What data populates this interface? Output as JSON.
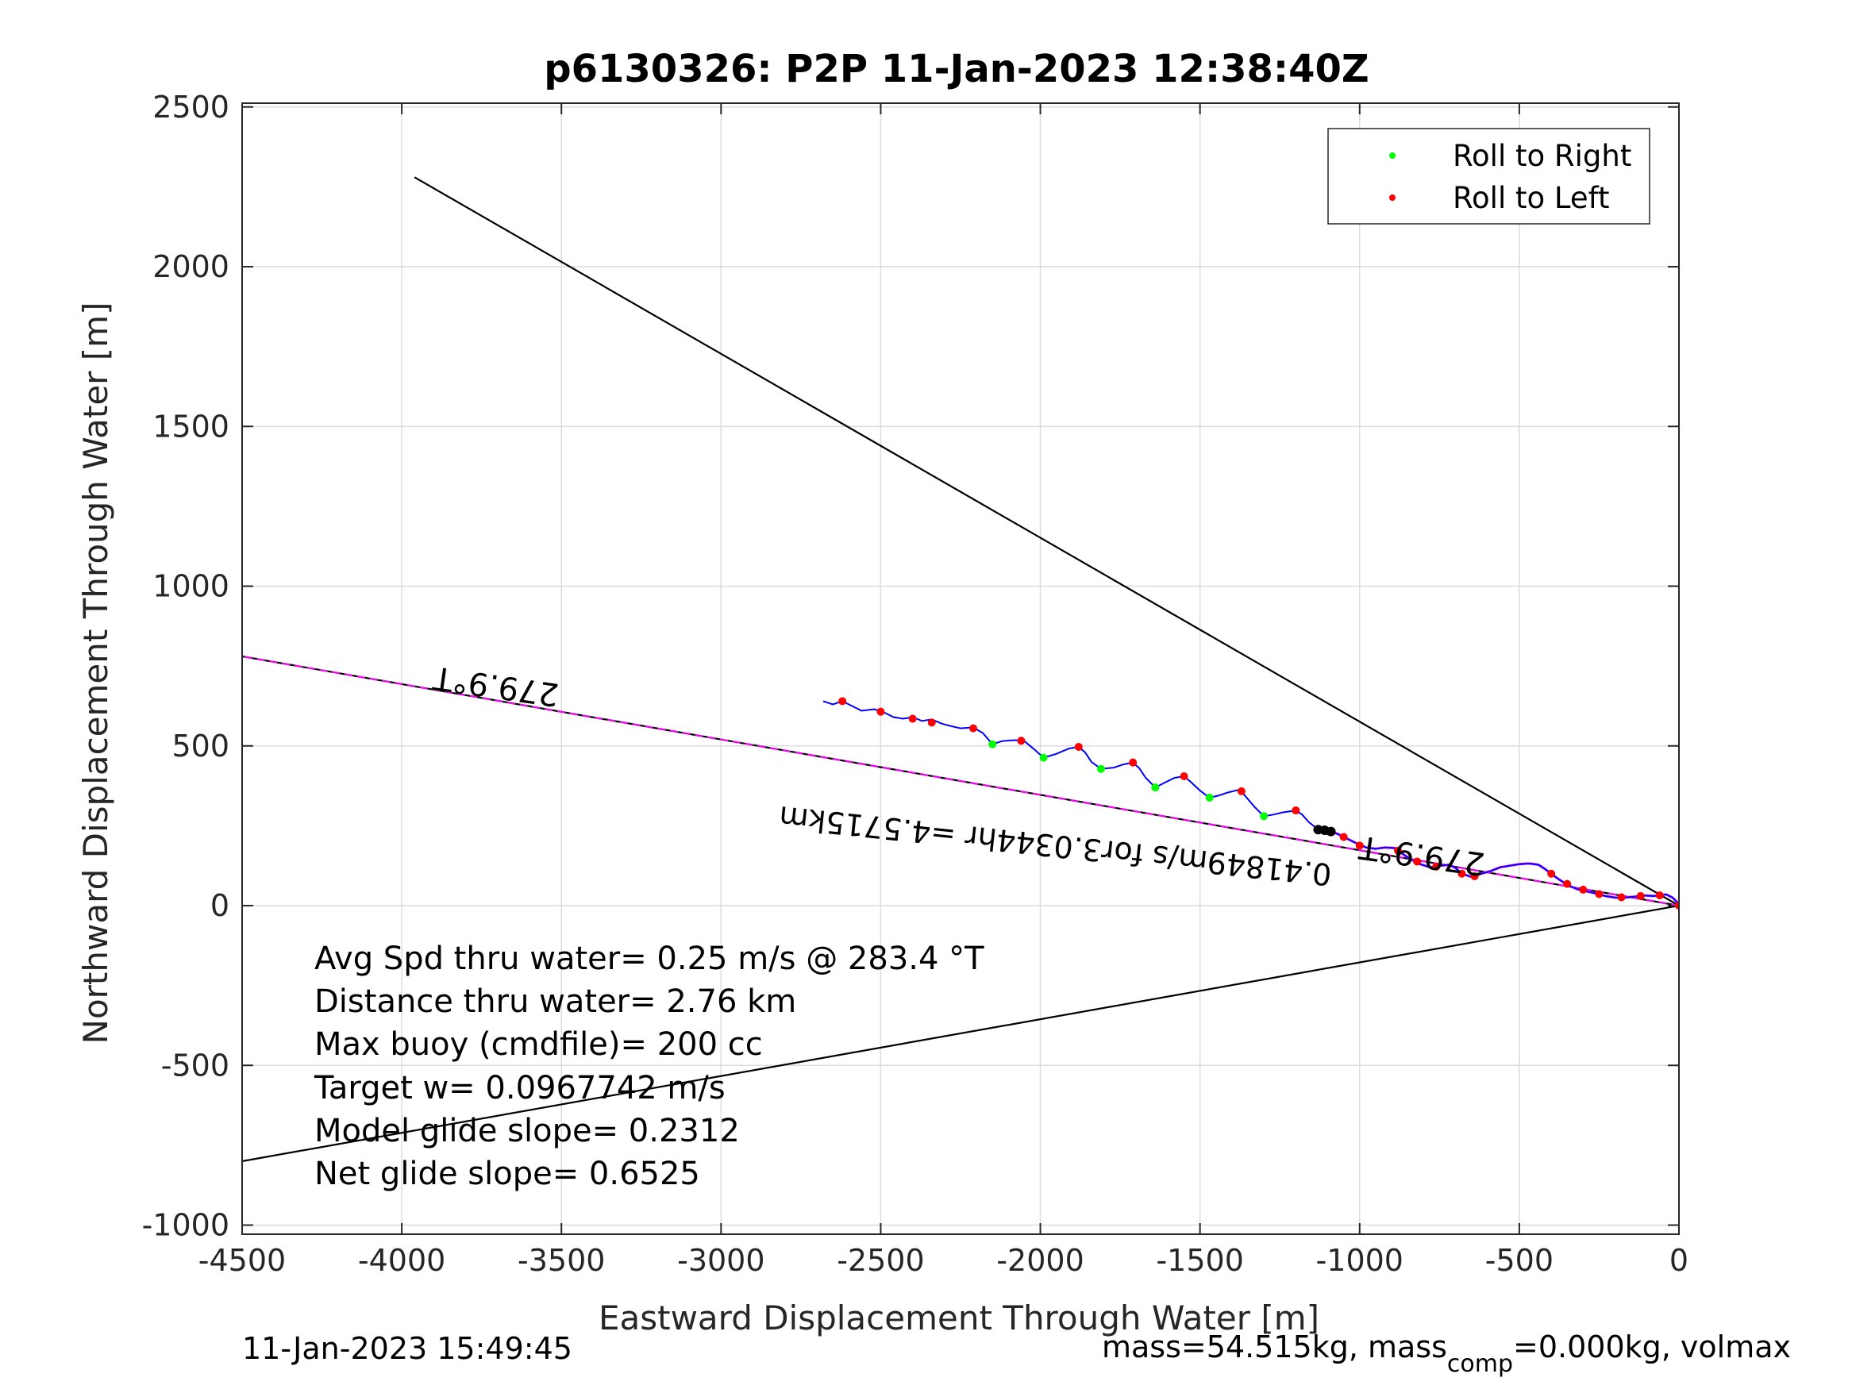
{
  "chart_data": {
    "type": "line",
    "title": "p6130326: P2P 11-Jan-2023 12:38:40Z",
    "xlabel": "Eastward Displacement Through Water [m]",
    "ylabel": "Northward Displacement Through Water [m]",
    "xlim": [
      -4500,
      0
    ],
    "ylim": [
      -1050,
      2520
    ],
    "x_ticks": [
      "-4500",
      "-4000",
      "-3500",
      "-3000",
      "-2500",
      "-2000",
      "-1500",
      "-1000",
      "-500",
      "0"
    ],
    "x_tick_values": [
      -4500,
      -4000,
      -3500,
      -3000,
      -2500,
      -2000,
      -1500,
      -1000,
      -500,
      0
    ],
    "y_ticks": [
      "-1000",
      "-500",
      "0",
      "500",
      "1000",
      "1500",
      "2000",
      "2500"
    ],
    "y_tick_values": [
      -1000,
      -500,
      0,
      500,
      1000,
      1500,
      2000,
      2500
    ],
    "grid": true,
    "legend": {
      "placement": "top-right",
      "entries": [
        {
          "label": "Roll to Right",
          "color": "#00ff00"
        },
        {
          "label": "Roll to Left",
          "color": "#ff0000"
        }
      ]
    },
    "reference_lines": [
      {
        "color": "#000000",
        "points": [
          [
            0,
            0
          ],
          [
            -3960,
            2280
          ]
        ]
      },
      {
        "color": "#000000",
        "points": [
          [
            0,
            0
          ],
          [
            -4500,
            -800
          ]
        ]
      },
      {
        "color": "#000000",
        "points": [
          [
            0,
            0
          ],
          [
            -4500,
            780
          ]
        ]
      },
      {
        "color": "#ff00ff",
        "points": [
          [
            0,
            0
          ],
          [
            -4500,
            780
          ]
        ]
      }
    ],
    "track": {
      "color": "#0000ff",
      "points": [
        [
          -2680,
          640
        ],
        [
          -2650,
          630
        ],
        [
          -2620,
          640
        ],
        [
          -2590,
          625
        ],
        [
          -2560,
          610
        ],
        [
          -2520,
          615
        ],
        [
          -2490,
          605
        ],
        [
          -2460,
          590
        ],
        [
          -2430,
          585
        ],
        [
          -2400,
          590
        ],
        [
          -2370,
          578
        ],
        [
          -2340,
          583
        ],
        [
          -2310,
          570
        ],
        [
          -2280,
          562
        ],
        [
          -2250,
          555
        ],
        [
          -2210,
          558
        ],
        [
          -2180,
          540
        ],
        [
          -2150,
          505
        ],
        [
          -2120,
          515
        ],
        [
          -2080,
          518
        ],
        [
          -2050,
          515
        ],
        [
          -2020,
          490
        ],
        [
          -1990,
          463
        ],
        [
          -1950,
          475
        ],
        [
          -1910,
          492
        ],
        [
          -1880,
          497
        ],
        [
          -1860,
          480
        ],
        [
          -1840,
          450
        ],
        [
          -1810,
          428
        ],
        [
          -1770,
          432
        ],
        [
          -1740,
          442
        ],
        [
          -1710,
          448
        ],
        [
          -1690,
          430
        ],
        [
          -1670,
          400
        ],
        [
          -1640,
          370
        ],
        [
          -1610,
          385
        ],
        [
          -1580,
          400
        ],
        [
          -1550,
          405
        ],
        [
          -1530,
          388
        ],
        [
          -1500,
          360
        ],
        [
          -1470,
          338
        ],
        [
          -1440,
          345
        ],
        [
          -1410,
          355
        ],
        [
          -1380,
          362
        ],
        [
          -1360,
          345
        ],
        [
          -1330,
          310
        ],
        [
          -1300,
          280
        ],
        [
          -1270,
          285
        ],
        [
          -1240,
          292
        ],
        [
          -1200,
          298
        ],
        [
          -1180,
          285
        ],
        [
          -1160,
          262
        ],
        [
          -1130,
          238
        ],
        [
          -1100,
          235
        ],
        [
          -1070,
          225
        ],
        [
          -1040,
          210
        ],
        [
          -1010,
          195
        ],
        [
          -980,
          182
        ],
        [
          -950,
          178
        ],
        [
          -920,
          182
        ],
        [
          -890,
          180
        ],
        [
          -870,
          165
        ],
        [
          -840,
          145
        ],
        [
          -810,
          130
        ],
        [
          -780,
          120
        ],
        [
          -750,
          125
        ],
        [
          -720,
          128
        ],
        [
          -700,
          118
        ],
        [
          -680,
          100
        ],
        [
          -650,
          90
        ],
        [
          -620,
          100
        ],
        [
          -590,
          108
        ],
        [
          -560,
          120
        ],
        [
          -530,
          125
        ],
        [
          -500,
          130
        ],
        [
          -470,
          132
        ],
        [
          -440,
          128
        ],
        [
          -420,
          115
        ],
        [
          -400,
          100
        ],
        [
          -380,
          85
        ],
        [
          -350,
          65
        ],
        [
          -320,
          52
        ],
        [
          -290,
          45
        ],
        [
          -260,
          38
        ],
        [
          -230,
          30
        ],
        [
          -200,
          25
        ],
        [
          -170,
          25
        ],
        [
          -140,
          28
        ],
        [
          -110,
          32
        ],
        [
          -80,
          30
        ],
        [
          -60,
          32
        ],
        [
          -40,
          35
        ],
        [
          -20,
          25
        ],
        [
          0,
          5
        ]
      ]
    },
    "roll_right_points": [
      [
        -2150,
        505
      ],
      [
        -1990,
        463
      ],
      [
        -1810,
        428
      ],
      [
        -1640,
        370
      ],
      [
        -1470,
        338
      ],
      [
        -1300,
        280
      ]
    ],
    "roll_left_points": [
      [
        -2620,
        640
      ],
      [
        -2500,
        607
      ],
      [
        -2400,
        585
      ],
      [
        -2340,
        573
      ],
      [
        -2210,
        555
      ],
      [
        -2060,
        516
      ],
      [
        -1880,
        497
      ],
      [
        -1710,
        448
      ],
      [
        -1550,
        405
      ],
      [
        -1370,
        358
      ],
      [
        -1200,
        298
      ],
      [
        -1100,
        233
      ],
      [
        -1050,
        215
      ],
      [
        -1000,
        188
      ],
      [
        -880,
        172
      ],
      [
        -820,
        138
      ],
      [
        -760,
        122
      ],
      [
        -680,
        100
      ],
      [
        -640,
        92
      ],
      [
        -400,
        100
      ],
      [
        -350,
        68
      ],
      [
        -300,
        50
      ],
      [
        -250,
        36
      ],
      [
        -180,
        26
      ],
      [
        -120,
        30
      ],
      [
        -60,
        32
      ],
      [
        0,
        0
      ]
    ],
    "track_marks": [
      [
        -1130,
        238
      ],
      [
        -1110,
        236
      ],
      [
        -1090,
        232
      ]
    ],
    "rotated_labels": [
      {
        "text": "279.9°T",
        "x": -3700,
        "y": 720
      },
      {
        "text": "279.9°T",
        "x": -800,
        "y": 190
      },
      {
        "text": "0.41849m/s for3.0344hr =4.5715km",
        "x": -1950,
        "y": 220
      }
    ],
    "text_block": [
      "Avg Spd thru water=  0.25 m/s @ 283.4 °T",
      "Distance thru water=  2.76 km",
      "Max buoy (cmdfile)= 200 cc",
      "Target w= 0.0967742 m/s",
      "Model glide slope= 0.2312",
      "Net glide slope= 0.6525"
    ]
  },
  "footer": {
    "left": "11-Jan-2023 15:49:45",
    "right_prefix": "mass=54.515kg, mass",
    "right_sub": "comp",
    "right_suffix": "=0.000kg, volmax"
  }
}
